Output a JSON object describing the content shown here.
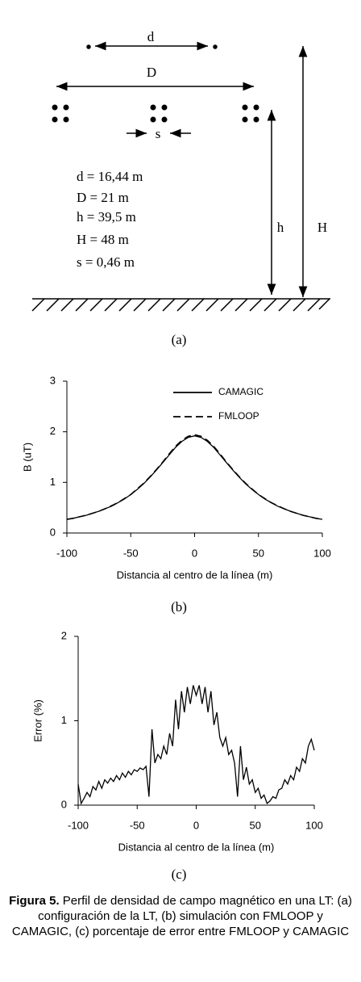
{
  "diagram": {
    "d_label": "d",
    "D_label": "D",
    "s_label": "s",
    "h_label": "h",
    "H_label": "H",
    "parameters": [
      "d = 16,44 m",
      "D = 21 m",
      "h = 39,5 m",
      "H = 48 m",
      "s = 0,46 m"
    ],
    "label": "(a)"
  },
  "chart_data": [
    {
      "type": "line",
      "label": "(b)",
      "x_label": "Distancia al centro de la línea (m)",
      "y_label": "B (uT)",
      "x": [
        -100,
        -95,
        -90,
        -85,
        -80,
        -75,
        -70,
        -65,
        -60,
        -55,
        -50,
        -45,
        -40,
        -35,
        -30,
        -25,
        -20,
        -15,
        -10,
        -5,
        0,
        5,
        10,
        15,
        20,
        25,
        30,
        35,
        40,
        45,
        50,
        55,
        60,
        65,
        70,
        75,
        80,
        85,
        90,
        95,
        100
      ],
      "series": [
        {
          "name": "CAMAGIC",
          "color": "#000000",
          "line_style": "solid",
          "values": [
            0.27,
            0.29,
            0.32,
            0.35,
            0.39,
            0.43,
            0.48,
            0.53,
            0.6,
            0.67,
            0.76,
            0.86,
            0.97,
            1.1,
            1.24,
            1.39,
            1.54,
            1.69,
            1.81,
            1.89,
            1.92,
            1.89,
            1.81,
            1.69,
            1.54,
            1.39,
            1.24,
            1.1,
            0.97,
            0.86,
            0.76,
            0.67,
            0.6,
            0.53,
            0.48,
            0.43,
            0.39,
            0.35,
            0.32,
            0.29,
            0.27
          ]
        },
        {
          "name": "FMLOOP",
          "color": "#000000",
          "line_style": "dashed",
          "values": [
            0.27,
            0.29,
            0.32,
            0.35,
            0.39,
            0.43,
            0.48,
            0.54,
            0.6,
            0.68,
            0.76,
            0.87,
            0.98,
            1.11,
            1.25,
            1.4,
            1.56,
            1.71,
            1.83,
            1.91,
            1.94,
            1.91,
            1.83,
            1.71,
            1.56,
            1.4,
            1.25,
            1.11,
            0.98,
            0.87,
            0.76,
            0.68,
            0.6,
            0.54,
            0.48,
            0.43,
            0.39,
            0.35,
            0.32,
            0.29,
            0.27
          ]
        }
      ],
      "xlim": [
        -100,
        100
      ],
      "xticks": [
        -100,
        -50,
        0,
        50,
        100
      ],
      "ylim": [
        0,
        3
      ],
      "yticks": [
        0,
        1,
        2,
        3
      ],
      "legend": "upper right"
    },
    {
      "type": "line",
      "label": "(c)",
      "x_label": "Distancia al centro de la línea (m)",
      "y_label": "Error (%)",
      "color": "#000000",
      "x": [
        -100,
        -97.5,
        -95,
        -92.5,
        -90,
        -87.5,
        -85,
        -82.5,
        -80,
        -77.5,
        -75,
        -72.5,
        -70,
        -67.5,
        -65,
        -62.5,
        -60,
        -57.5,
        -55,
        -52.5,
        -50,
        -47.5,
        -45,
        -42.5,
        -40,
        -37.5,
        -35,
        -32.5,
        -30,
        -27.5,
        -25,
        -22.5,
        -20,
        -17.5,
        -15,
        -12.5,
        -10,
        -7.5,
        -5,
        -2.5,
        0,
        2.5,
        5,
        7.5,
        10,
        12.5,
        15,
        17.5,
        20,
        22.5,
        25,
        27.5,
        30,
        32.5,
        35,
        37.5,
        40,
        42.5,
        45,
        47.5,
        50,
        52.5,
        55,
        57.5,
        60,
        62.5,
        65,
        67.5,
        70,
        72.5,
        75,
        77.5,
        80,
        82.5,
        85,
        87.5,
        90,
        92.5,
        95,
        97.5,
        100
      ],
      "values": [
        0.25,
        0.02,
        0.08,
        0.15,
        0.1,
        0.22,
        0.18,
        0.28,
        0.2,
        0.3,
        0.26,
        0.32,
        0.28,
        0.35,
        0.3,
        0.38,
        0.33,
        0.4,
        0.36,
        0.42,
        0.4,
        0.44,
        0.42,
        0.46,
        0.1,
        0.9,
        0.5,
        0.6,
        0.55,
        0.7,
        0.6,
        0.85,
        0.7,
        1.25,
        0.9,
        1.35,
        1.1,
        1.4,
        1.2,
        1.42,
        1.3,
        1.42,
        1.2,
        1.4,
        1.1,
        1.35,
        0.95,
        1.1,
        0.8,
        0.7,
        0.8,
        0.6,
        0.65,
        0.5,
        0.1,
        0.7,
        0.3,
        0.45,
        0.25,
        0.3,
        0.15,
        0.2,
        0.08,
        0.12,
        0.02,
        0.05,
        0.1,
        0.08,
        0.18,
        0.2,
        0.3,
        0.25,
        0.35,
        0.3,
        0.45,
        0.4,
        0.55,
        0.5,
        0.7,
        0.78,
        0.65
      ],
      "xlim": [
        -100,
        100
      ],
      "xticks": [
        -100,
        -50,
        0,
        50,
        100
      ],
      "ylim": [
        0,
        2
      ],
      "yticks": [
        0,
        1,
        2
      ]
    }
  ],
  "caption": {
    "label": "Figura 5.",
    "text": "Perfil de densidad de campo magnético en una LT: (a) configuración de la LT, (b) simulación con FMLOOP y CAMAGIC, (c) porcentaje de error entre FMLOOP y CAMAGIC"
  }
}
